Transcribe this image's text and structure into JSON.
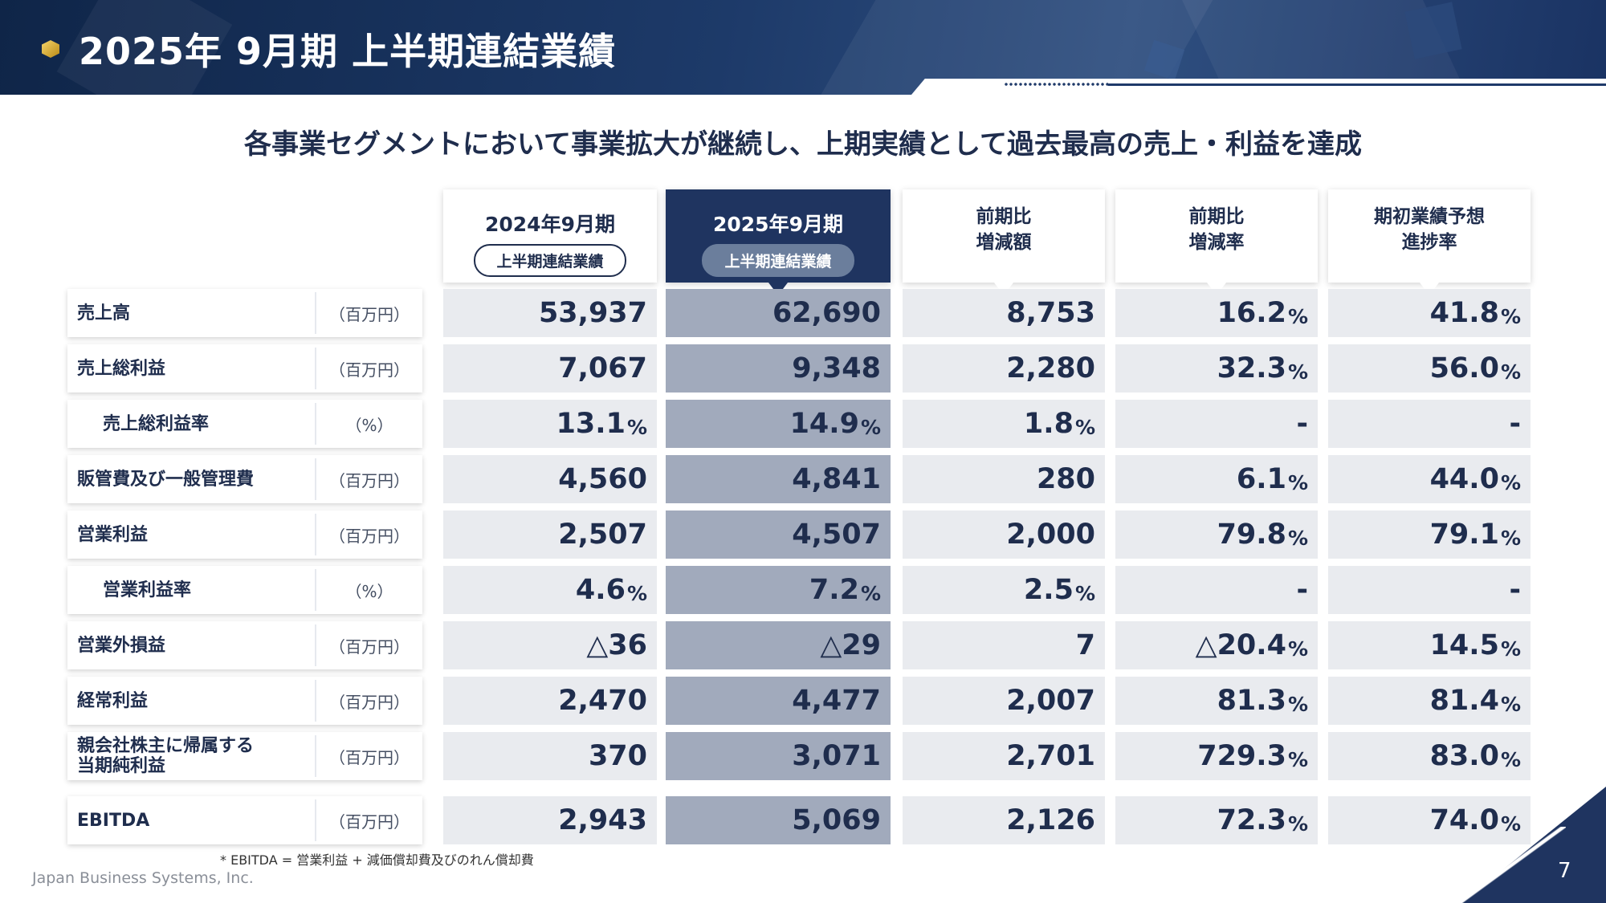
{
  "header": {
    "title": "2025年 9月期 上半期連結業績"
  },
  "headline": "各事業セグメントにおいて事業拡大が継続し、上期実績として過去最高の売上・利益を達成",
  "columns": [
    {
      "line1": "2024年9月期",
      "pill": "上半期連結業績"
    },
    {
      "line1": "2025年9月期",
      "pill": "上半期連結業績"
    },
    {
      "line1": "前期比",
      "line2": "増減額"
    },
    {
      "line1": "前期比",
      "line2": "増減率"
    },
    {
      "line1": "期初業績予想",
      "line2": "進捗率"
    }
  ],
  "rows": [
    {
      "label": "売上高",
      "unit": "（百万円）",
      "values": [
        "53,937",
        "62,690",
        "8,753",
        "16.2",
        "41.8"
      ],
      "pct": [
        "",
        "",
        "",
        "%",
        "%"
      ]
    },
    {
      "label": "売上総利益",
      "unit": "（百万円）",
      "values": [
        "7,067",
        "9,348",
        "2,280",
        "32.3",
        "56.0"
      ],
      "pct": [
        "",
        "",
        "",
        "%",
        "%"
      ]
    },
    {
      "label": "売上総利益率",
      "unit": "（%）",
      "values": [
        "13.1",
        "14.9",
        "1.8",
        "-",
        "-"
      ],
      "pct": [
        "%",
        "%",
        "%",
        "",
        ""
      ]
    },
    {
      "label": "販管費及び一般管理費",
      "unit": "（百万円）",
      "values": [
        "4,560",
        "4,841",
        "280",
        "6.1",
        "44.0"
      ],
      "pct": [
        "",
        "",
        "",
        "%",
        "%"
      ]
    },
    {
      "label": "営業利益",
      "unit": "（百万円）",
      "values": [
        "2,507",
        "4,507",
        "2,000",
        "79.8",
        "79.1"
      ],
      "pct": [
        "",
        "",
        "",
        "%",
        "%"
      ]
    },
    {
      "label": "営業利益率",
      "unit": "（%）",
      "values": [
        "4.6",
        "7.2",
        "2.5",
        "-",
        "-"
      ],
      "pct": [
        "%",
        "%",
        "%",
        "",
        ""
      ]
    },
    {
      "label": "営業外損益",
      "unit": "（百万円）",
      "values": [
        "△36",
        "△29",
        "7",
        "△20.4",
        "14.5"
      ],
      "pct": [
        "",
        "",
        "",
        "%",
        "%"
      ]
    },
    {
      "label": "経常利益",
      "unit": "（百万円）",
      "values": [
        "2,470",
        "4,477",
        "2,007",
        "81.3",
        "81.4"
      ],
      "pct": [
        "",
        "",
        "",
        "%",
        "%"
      ]
    },
    {
      "label": "親会社株主に帰属する\n当期純利益",
      "unit": "（百万円）",
      "values": [
        "370",
        "3,071",
        "2,701",
        "729.3",
        "83.0"
      ],
      "pct": [
        "",
        "",
        "",
        "%",
        "%"
      ]
    },
    {
      "label": "EBITDA",
      "unit": "（百万円）",
      "values": [
        "2,943",
        "5,069",
        "2,126",
        "72.3",
        "74.0"
      ],
      "pct": [
        "",
        "",
        "",
        "%",
        "%"
      ]
    }
  ],
  "footnote": "* EBITDA = 営業利益 + 減価償却費及びのれん償却費",
  "company": "Japan Business Systems, Inc.",
  "page_number": "7",
  "colors": {
    "navy": "#1f3460",
    "accent_gold": "#d4a72c",
    "cell_gray": "#e9ebef",
    "highlight_col": "#a1aabc"
  }
}
